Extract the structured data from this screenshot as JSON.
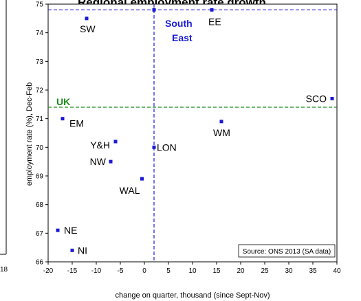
{
  "chart_data": {
    "type": "scatter",
    "title": "Regional employment rate growth",
    "xlabel": "change on quarter, thousand (since Sept-Nov)",
    "ylabel": "employment rate (%), Dec-Feb",
    "xlim": [
      -20,
      40
    ],
    "ylim": [
      66,
      75
    ],
    "xticks": [
      "-20",
      "-15",
      "-10",
      "-5",
      "0",
      "5",
      "10",
      "15",
      "20",
      "25",
      "30",
      "35",
      "40"
    ],
    "yticks": [
      "66",
      "67",
      "68",
      "69",
      "70",
      "71",
      "72",
      "73",
      "74",
      "75"
    ],
    "points": [
      {
        "label": "SW",
        "x": -12,
        "y": 74.5
      },
      {
        "label": "EE",
        "x": 14,
        "y": 74.8
      },
      {
        "label": "SCO",
        "x": 39,
        "y": 71.7
      },
      {
        "label": "EM",
        "x": -17,
        "y": 71.0
      },
      {
        "label": "WM",
        "x": 16,
        "y": 70.9
      },
      {
        "label": "Y&H",
        "x": -6,
        "y": 70.2
      },
      {
        "label": "LON",
        "x": 2,
        "y": 70.0
      },
      {
        "label": "NW",
        "x": -7,
        "y": 69.5
      },
      {
        "label": "WAL",
        "x": -0.5,
        "y": 68.9
      },
      {
        "label": "NE",
        "x": -18,
        "y": 67.1
      },
      {
        "label": "NI",
        "x": -15,
        "y": 66.4
      },
      {
        "label": "South East",
        "x": 2,
        "y": 74.8
      }
    ],
    "reference_lines": {
      "uk": {
        "label": "UK",
        "y": 71.4,
        "color": "#1a8a1a"
      },
      "south_east_horizontal": {
        "y": 74.8,
        "color": "#1a1ad6"
      },
      "south_east_vertical": {
        "x": 2,
        "color": "#1a1ad6"
      }
    },
    "south_east_label_lines": [
      "South",
      "East"
    ],
    "source": "Source: ONS 2013 (SA data)",
    "point_color": "#1a1ad6",
    "grid": false,
    "legend": "none"
  },
  "fragments": {
    "left_edge_number": "18"
  }
}
